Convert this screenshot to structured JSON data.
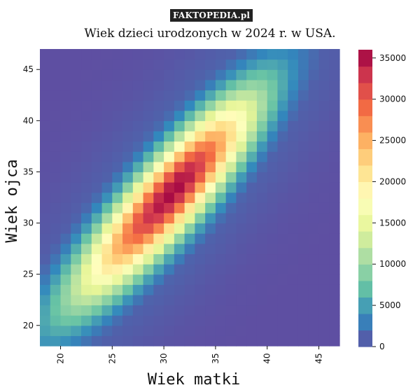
{
  "watermark": "FAKTOPEDIA.pl",
  "chart_data": {
    "type": "heatmap",
    "title": "Wiek dzieci urodzonych w 2024 r. w USA.",
    "xlabel": "Wiek matki",
    "ylabel": "Wiek ojca",
    "x_range": [
      18,
      47
    ],
    "y_range": [
      18,
      47
    ],
    "x_ticks": [
      20,
      25,
      30,
      35,
      40,
      45
    ],
    "y_ticks": [
      20,
      25,
      30,
      35,
      40,
      45
    ],
    "colorbar": {
      "min": 0,
      "max": 36000,
      "ticks": [
        0,
        5000,
        10000,
        15000,
        20000,
        25000,
        30000,
        35000
      ]
    },
    "colormap": "Spectral_r",
    "distribution": {
      "description_of_values": "births per (mother age, father age) cell",
      "ridge_father_minus_mother_age": 2.2,
      "peak_mother_age": 31,
      "peak_father_age": 33,
      "peak_value": 35500,
      "background_value": 0
    }
  }
}
